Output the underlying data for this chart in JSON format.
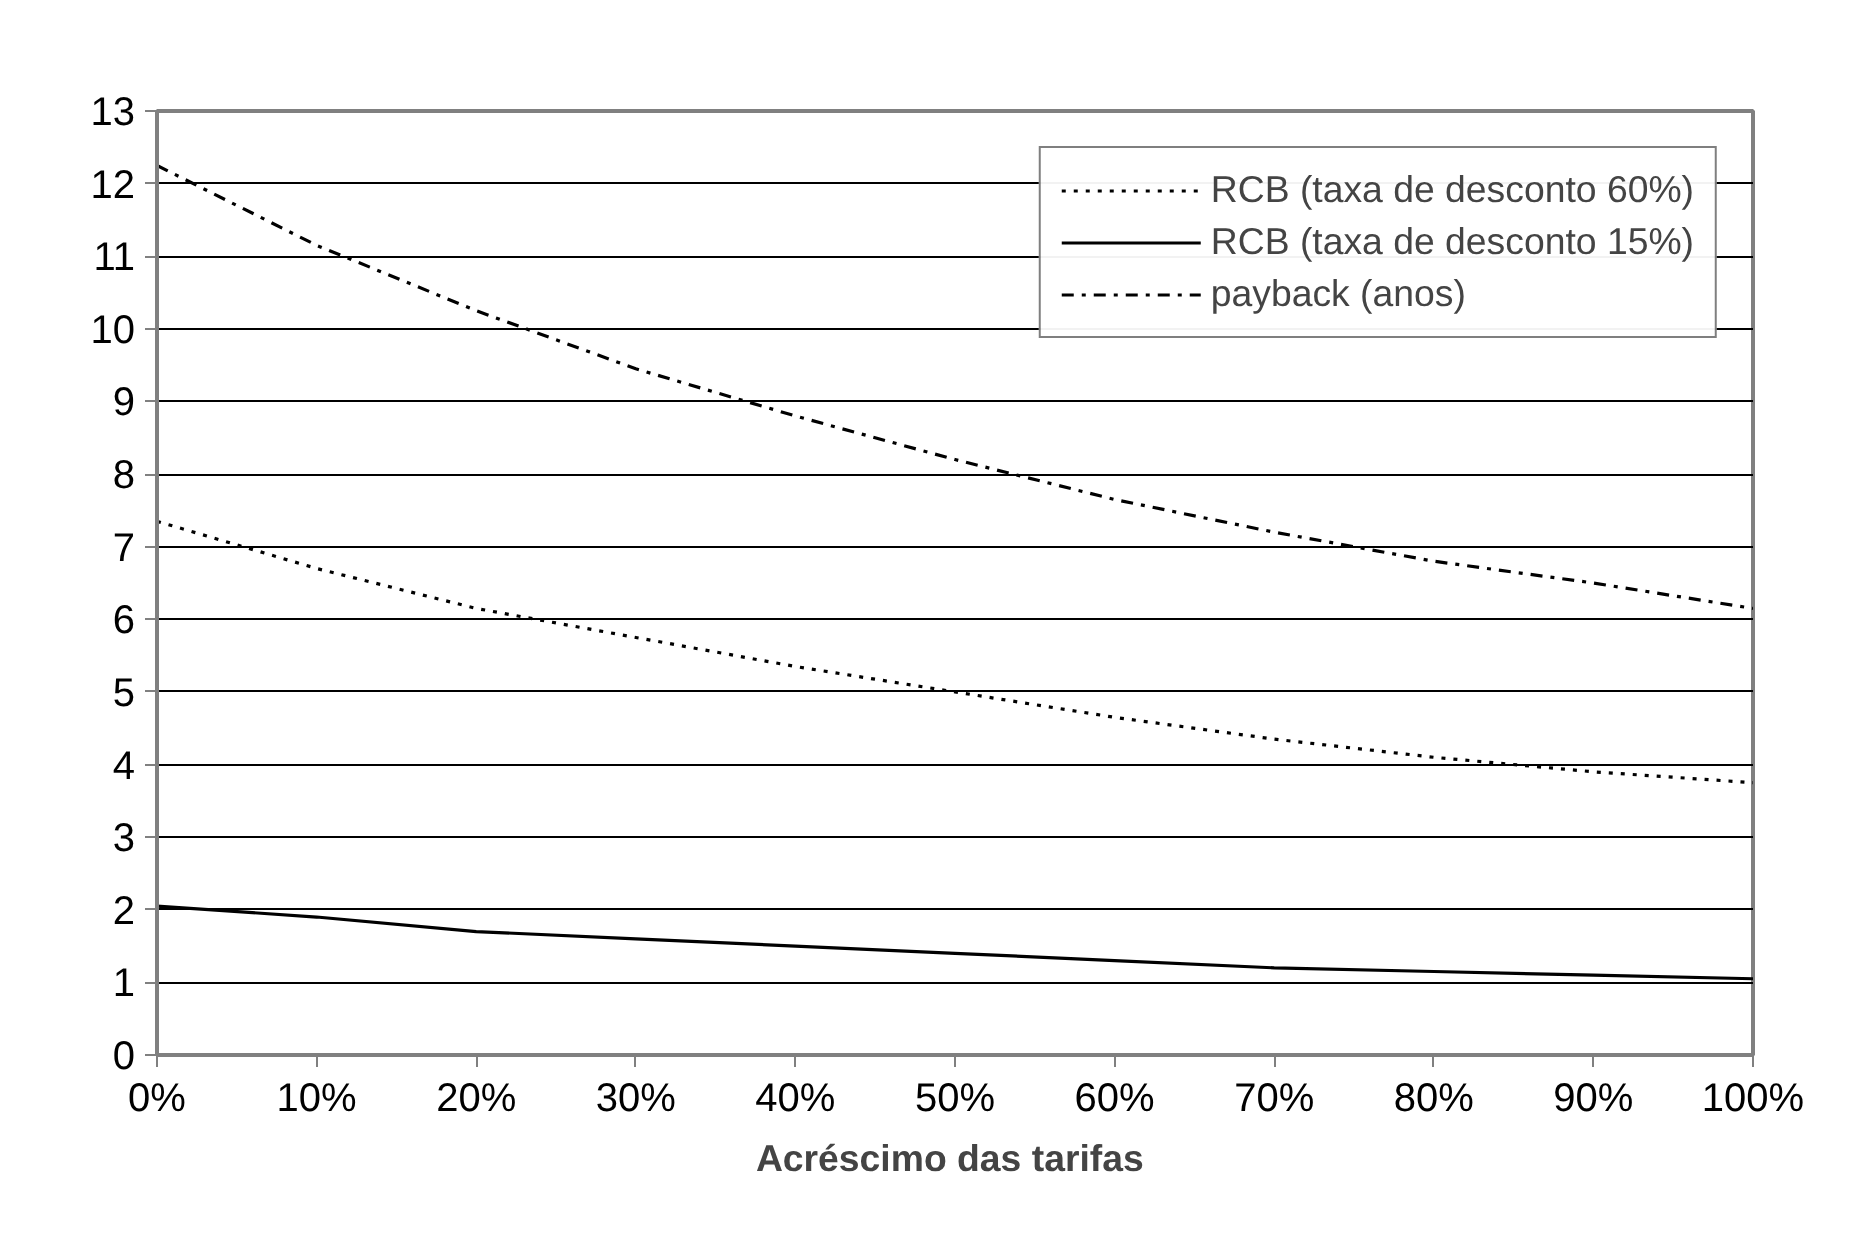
{
  "chart_data": {
    "type": "line",
    "xlabel": "Acréscimo das  tarifas",
    "x": [
      0,
      10,
      20,
      30,
      40,
      50,
      60,
      70,
      80,
      90,
      100
    ],
    "series": [
      {
        "name": "RCB (taxa de desconto 60%)",
        "color": "#000000",
        "line_style": "dotted",
        "values": [
          7.35,
          6.7,
          6.15,
          5.75,
          5.35,
          5.0,
          4.65,
          4.35,
          4.1,
          3.9,
          3.75
        ]
      },
      {
        "name": "RCB (taxa de desconto 15%)",
        "color": "#000000",
        "line_style": "solid",
        "values": [
          2.05,
          1.9,
          1.7,
          1.6,
          1.5,
          1.4,
          1.3,
          1.2,
          1.15,
          1.1,
          1.05
        ]
      },
      {
        "name": "payback (anos)",
        "color": "#000000",
        "line_style": "dashdot",
        "values": [
          12.25,
          11.15,
          10.25,
          9.45,
          8.8,
          8.2,
          7.65,
          7.2,
          6.8,
          6.5,
          6.15
        ]
      }
    ],
    "xlim": [
      0,
      100
    ],
    "xticks": [
      {
        "value": 0,
        "label": "0%"
      },
      {
        "value": 10,
        "label": "10%"
      },
      {
        "value": 20,
        "label": "20%"
      },
      {
        "value": 30,
        "label": "30%"
      },
      {
        "value": 40,
        "label": "40%"
      },
      {
        "value": 50,
        "label": "50%"
      },
      {
        "value": 60,
        "label": "60%"
      },
      {
        "value": 70,
        "label": "70%"
      },
      {
        "value": 80,
        "label": "80%"
      },
      {
        "value": 90,
        "label": "90%"
      },
      {
        "value": 100,
        "label": "100%"
      }
    ],
    "ylim": [
      0,
      13
    ],
    "yticks": [
      0,
      1,
      2,
      3,
      4,
      5,
      6,
      7,
      8,
      9,
      10,
      11,
      12,
      13
    ],
    "grid": "y",
    "legend": "top right",
    "marker": "none"
  }
}
